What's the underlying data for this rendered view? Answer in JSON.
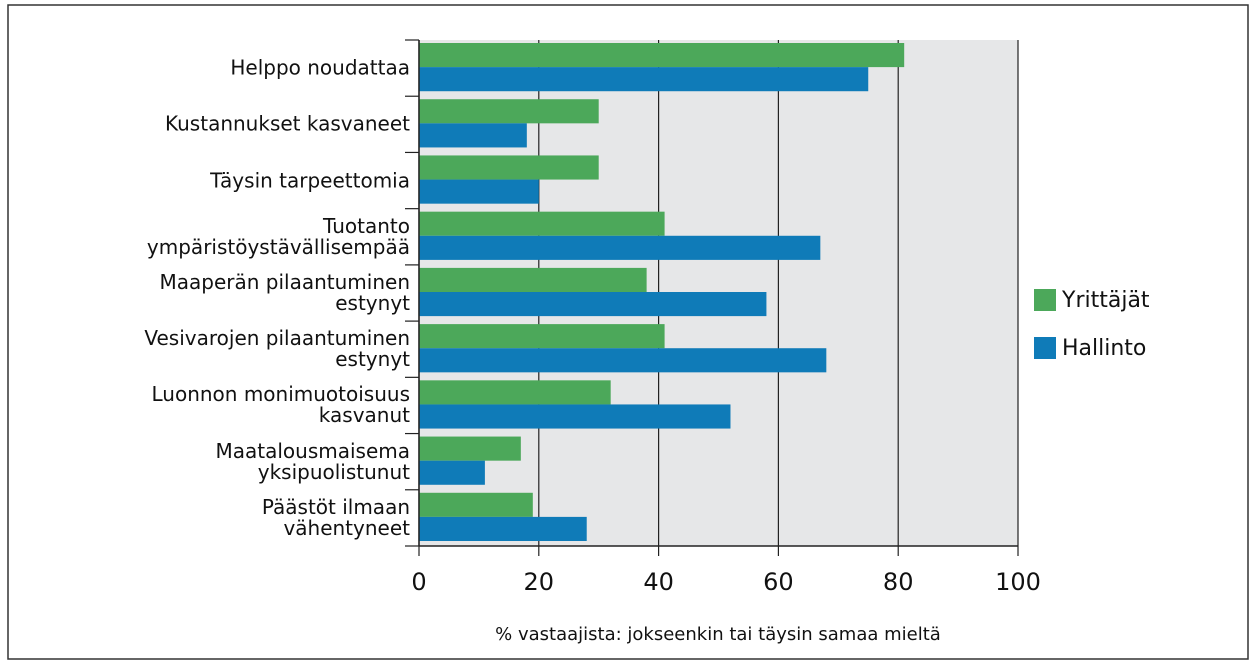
{
  "chart_data": {
    "type": "bar",
    "categories": [
      "Helppo noudattaa",
      "Kustannukset kasvaneet",
      "Täysin tarpeettomia",
      "Tuotanto\nympäristöystävällisempää",
      "Maaperän pilaantuminen\nestynyt",
      "Vesivarojen pilaantuminen\nestynyt",
      "Luonnon monimuotoisuus\nkasvanut",
      "Maatalousmaisema\nyksipuolistunut",
      "Päästöt ilmaan\nvähentyneet"
    ],
    "series": [
      {
        "name": "Yrittäjät",
        "color": "#4ca85a",
        "values": [
          81,
          30,
          30,
          41,
          38,
          41,
          32,
          17,
          19
        ]
      },
      {
        "name": "Hallinto",
        "color": "#0f7bb8",
        "values": [
          75,
          18,
          20,
          67,
          58,
          68,
          52,
          11,
          28
        ]
      }
    ],
    "xlabel": "% vastaajista: jokseenkin tai täysin samaa mieltä",
    "xlim": [
      0,
      100
    ],
    "xticks": [
      0,
      20,
      40,
      60,
      80,
      100
    ],
    "grid": true,
    "legend": "right"
  }
}
